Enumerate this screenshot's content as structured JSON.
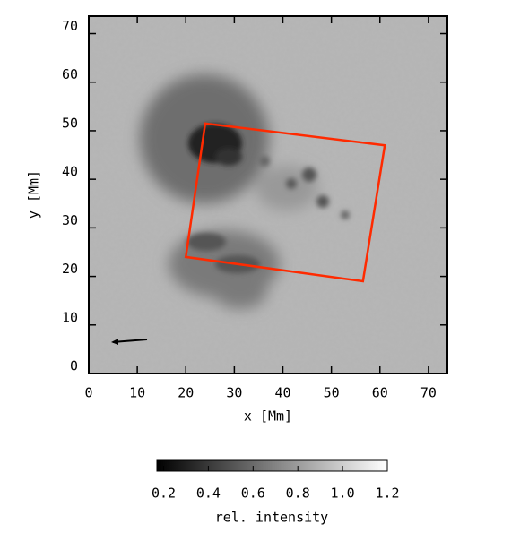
{
  "chart_data": {
    "type": "image",
    "xlabel": "x [Mm]",
    "ylabel": "y [Mm]",
    "xlim": [
      0,
      73.9
    ],
    "ylim": [
      0,
      73.6
    ],
    "xticks": [
      0,
      10,
      20,
      30,
      40,
      50,
      60,
      70
    ],
    "yticks": [
      0,
      10,
      20,
      30,
      40,
      50,
      60,
      70
    ],
    "overlay": {
      "x": [
        24,
        61,
        56.5,
        20
      ],
      "y": [
        51.5,
        47,
        19,
        24
      ],
      "color": "#ff2a00"
    },
    "colorbar": {
      "label": "rel. intensity",
      "lim": [
        0.17,
        1.2
      ],
      "colormap": "gray",
      "ticks": [
        0.2,
        0.4,
        0.6,
        0.8,
        {
          "value": 1,
          "label": "1.0"
        },
        1.2
      ]
    }
  }
}
